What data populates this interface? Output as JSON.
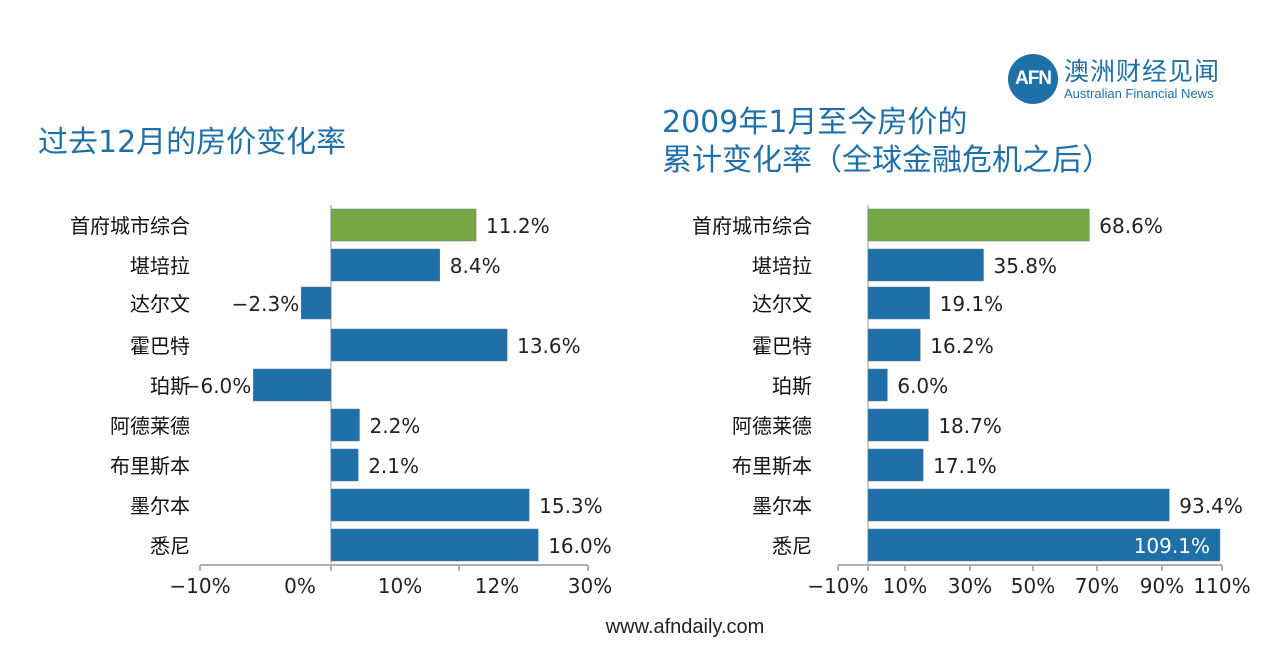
{
  "logo": {
    "mark": "AFN",
    "name_cn": "澳洲财经见闻",
    "name_en": "Australian Financial News"
  },
  "footer": "www.afndaily.com",
  "colors": {
    "highlight": "#77a843",
    "bar": "#1f6fa8",
    "title": "#1f6fa8",
    "axis": "#b0b0b0"
  },
  "chart_data": [
    {
      "type": "bar",
      "orientation": "horizontal",
      "title": "过去12月的房价变化率",
      "categories": [
        "首府城市综合",
        "堪培拉",
        "达尔文",
        "霍巴特",
        "珀斯",
        "阿德莱德",
        "布里斯本",
        "墨尔本",
        "悉尼"
      ],
      "values": [
        11.2,
        8.4,
        -2.3,
        13.6,
        -6.0,
        2.2,
        2.1,
        15.3,
        16.0
      ],
      "labels": [
        "11.2%",
        "8.4%",
        "−2.3%",
        "13.6%",
        "−6.0%",
        "2.2%",
        "2.1%",
        "15.3%",
        "16.0%"
      ],
      "highlight_index": 0,
      "xtick_labels": [
        "−10%",
        "0%",
        "10%",
        "12%",
        "30%"
      ],
      "xlim": [
        -10,
        20
      ]
    },
    {
      "type": "bar",
      "orientation": "horizontal",
      "title": "2009年1月至今房价的",
      "title_line2": "累计变化率（全球金融危机之后）",
      "categories": [
        "首府城市综合",
        "堪培拉",
        "达尔文",
        "霍巴特",
        "珀斯",
        "阿德莱德",
        "布里斯本",
        "墨尔本",
        "悉尼"
      ],
      "values": [
        68.6,
        35.8,
        19.1,
        16.2,
        6.0,
        18.7,
        17.1,
        93.4,
        109.1
      ],
      "labels": [
        "68.6%",
        "35.8%",
        "19.1%",
        "16.2%",
        "6.0%",
        "18.7%",
        "17.1%",
        "93.4%",
        "109.1%"
      ],
      "highlight_index": 0,
      "xtick_labels": [
        "−10%",
        "10%",
        "30%",
        "50%",
        "70%",
        "90%",
        "110%"
      ],
      "xlim": [
        -10,
        110
      ]
    }
  ]
}
